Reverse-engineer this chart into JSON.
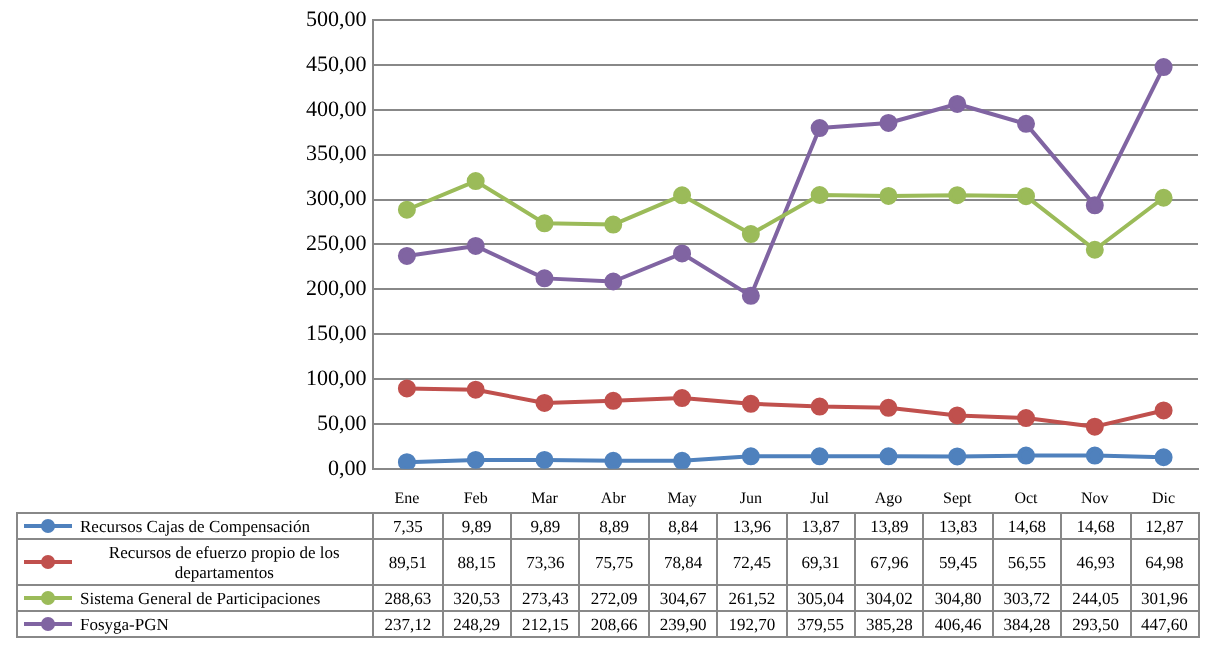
{
  "chart_data": {
    "type": "line",
    "categories": [
      "Ene",
      "Feb",
      "Mar",
      "Abr",
      "May",
      "Jun",
      "Jul",
      "Ago",
      "Sept",
      "Oct",
      "Nov",
      "Dic"
    ],
    "series": [
      {
        "name": "Recursos Cajas de Compensación",
        "color": "#4f81bd",
        "values": [
          7.35,
          9.89,
          9.89,
          8.89,
          8.84,
          13.96,
          13.87,
          13.89,
          13.83,
          14.68,
          14.68,
          12.87
        ],
        "value_labels": [
          "7,35",
          "9,89",
          "9,89",
          "8,89",
          "8,84",
          "13,96",
          "13,87",
          "13,89",
          "13,83",
          "14,68",
          "14,68",
          "12,87"
        ]
      },
      {
        "name": "Recursos de efuerzo propio de los departamentos",
        "color": "#c0504d",
        "values": [
          89.51,
          88.15,
          73.36,
          75.75,
          78.84,
          72.45,
          69.31,
          67.96,
          59.45,
          56.55,
          46.93,
          64.98
        ],
        "value_labels": [
          "89,51",
          "88,15",
          "73,36",
          "75,75",
          "78,84",
          "72,45",
          "69,31",
          "67,96",
          "59,45",
          "56,55",
          "46,93",
          "64,98"
        ]
      },
      {
        "name": "Sistema General de Participaciones",
        "color": "#9bbb59",
        "values": [
          288.63,
          320.53,
          273.43,
          272.09,
          304.67,
          261.52,
          305.04,
          304.02,
          304.8,
          303.72,
          244.05,
          301.96
        ],
        "value_labels": [
          "288,63",
          "320,53",
          "273,43",
          "272,09",
          "304,67",
          "261,52",
          "305,04",
          "304,02",
          "304,80",
          "303,72",
          "244,05",
          "301,96"
        ]
      },
      {
        "name": "Fosyga-PGN",
        "color": "#8064a2",
        "values": [
          237.12,
          248.29,
          212.15,
          208.66,
          239.9,
          192.7,
          379.55,
          385.28,
          406.46,
          384.28,
          293.5,
          447.6
        ],
        "value_labels": [
          "237,12",
          "248,29",
          "212,15",
          "208,66",
          "239,90",
          "192,70",
          "379,55",
          "385,28",
          "406,46",
          "384,28",
          "293,50",
          "447,60"
        ]
      }
    ],
    "ylim": [
      0,
      500
    ],
    "yticks": [
      {
        "value": 0,
        "label": "0,00"
      },
      {
        "value": 50,
        "label": "50,00"
      },
      {
        "value": 100,
        "label": "100,00"
      },
      {
        "value": 150,
        "label": "150,00"
      },
      {
        "value": 200,
        "label": "200,00"
      },
      {
        "value": 250,
        "label": "250,00"
      },
      {
        "value": 300,
        "label": "300,00"
      },
      {
        "value": 350,
        "label": "350,00"
      },
      {
        "value": 400,
        "label": "400,00"
      },
      {
        "value": 450,
        "label": "450,00"
      },
      {
        "value": 500,
        "label": "500,00"
      }
    ],
    "grid": "y",
    "legend": "bottom",
    "marker": "circle",
    "line_style": "solid"
  }
}
